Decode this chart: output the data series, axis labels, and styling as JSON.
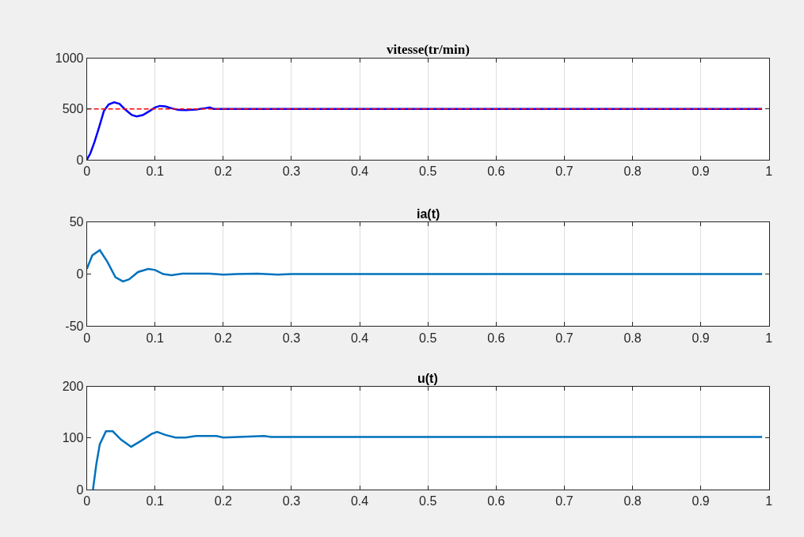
{
  "chart_data": [
    {
      "type": "line",
      "title": "vitesse(tr/min)",
      "xlim": [
        0,
        1
      ],
      "xticks": [
        0,
        0.1,
        0.2,
        0.3,
        0.4,
        0.5,
        0.6,
        0.7,
        0.8,
        0.9,
        1
      ],
      "ylim": [
        0,
        1000
      ],
      "yticks": [
        0,
        500,
        1000
      ],
      "grid": "x",
      "series": [
        {
          "color": "#0000ff",
          "line_style": "solid",
          "x": [
            0,
            0.005,
            0.011,
            0.018,
            0.025,
            0.032,
            0.04,
            0.048,
            0.057,
            0.066,
            0.073,
            0.082,
            0.092,
            0.1,
            0.107,
            0.115,
            0.125,
            0.135,
            0.145,
            0.16,
            0.172,
            0.18,
            0.186,
            0.2,
            0.3,
            0.5,
            0.7,
            0.99
          ],
          "values": [
            0,
            60,
            170,
            320,
            480,
            545,
            565,
            550,
            490,
            440,
            426,
            440,
            480,
            515,
            530,
            525,
            505,
            490,
            488,
            495,
            505,
            515,
            500,
            500,
            500,
            500,
            500,
            500
          ]
        },
        {
          "color": "#ff0000",
          "line_style": "dashed",
          "x": [
            0,
            0.99
          ],
          "values": [
            500,
            500
          ]
        }
      ]
    },
    {
      "type": "line",
      "title": "ia(t)",
      "xlim": [
        0,
        1
      ],
      "xticks": [
        0,
        0.1,
        0.2,
        0.3,
        0.4,
        0.5,
        0.6,
        0.7,
        0.8,
        0.9,
        1
      ],
      "ylim": [
        -50,
        50
      ],
      "yticks": [
        -50,
        0,
        50
      ],
      "grid": "x",
      "series": [
        {
          "color": "#0072bd",
          "line_style": "solid",
          "x": [
            0,
            0.008,
            0.019,
            0.03,
            0.042,
            0.053,
            0.062,
            0.075,
            0.09,
            0.1,
            0.112,
            0.124,
            0.14,
            0.16,
            0.18,
            0.2,
            0.22,
            0.25,
            0.28,
            0.3,
            0.4,
            0.6,
            0.8,
            0.99
          ],
          "values": [
            5,
            18,
            23,
            12,
            -3,
            -7,
            -5,
            2,
            5,
            4,
            0,
            -1,
            0.5,
            0.5,
            0.5,
            -0.5,
            0,
            0.5,
            -0.5,
            0,
            0,
            0,
            0,
            0
          ]
        }
      ]
    },
    {
      "type": "line",
      "title": "u(t)",
      "xlim": [
        0,
        1
      ],
      "xticks": [
        0,
        0.1,
        0.2,
        0.3,
        0.4,
        0.5,
        0.6,
        0.7,
        0.8,
        0.9,
        1
      ],
      "ylim": [
        0,
        200
      ],
      "yticks": [
        0,
        100,
        200
      ],
      "grid": "x",
      "series": [
        {
          "color": "#0072bd",
          "line_style": "solid",
          "x": [
            0.009,
            0.014,
            0.019,
            0.028,
            0.038,
            0.05,
            0.065,
            0.08,
            0.095,
            0.103,
            0.115,
            0.13,
            0.145,
            0.16,
            0.19,
            0.2,
            0.26,
            0.27,
            0.4,
            0.7,
            0.99
          ],
          "values": [
            0,
            50,
            88,
            113,
            113,
            97,
            83,
            95,
            108,
            112,
            106,
            101,
            101,
            104,
            104,
            101,
            104,
            102,
            102,
            102,
            102
          ]
        }
      ]
    }
  ]
}
